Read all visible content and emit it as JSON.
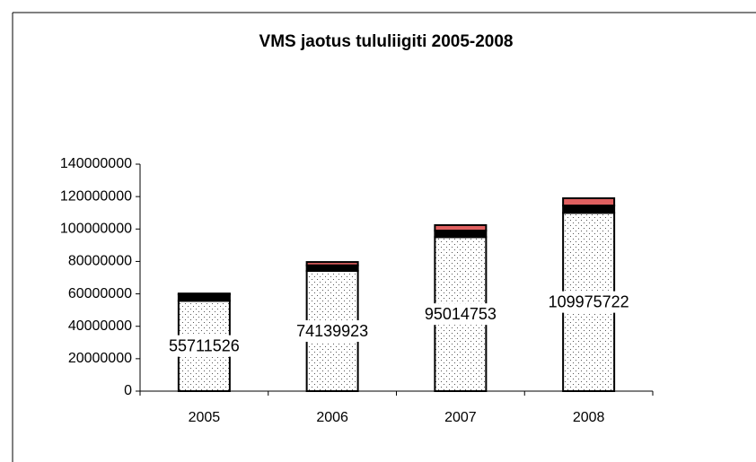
{
  "chart_data": {
    "type": "stacked-bar",
    "title": "VMS jaotus tululiigiti  2005-2008",
    "categories": [
      "2005",
      "2006",
      "2007",
      "2008"
    ],
    "series": [
      {
        "color": "dots",
        "values": [
          55711526,
          74139923,
          95014753,
          109975722
        ]
      },
      {
        "color": "#000000",
        "values": [
          4000000,
          3500000,
          4000000,
          4500000
        ]
      },
      {
        "color": "#e06060",
        "values": [
          500000,
          2000000,
          3400000,
          4500000
        ]
      }
    ],
    "ylim": [
      0,
      140000000
    ],
    "yticks": [
      0,
      20000000,
      40000000,
      60000000,
      80000000,
      100000000,
      120000000,
      140000000
    ]
  }
}
